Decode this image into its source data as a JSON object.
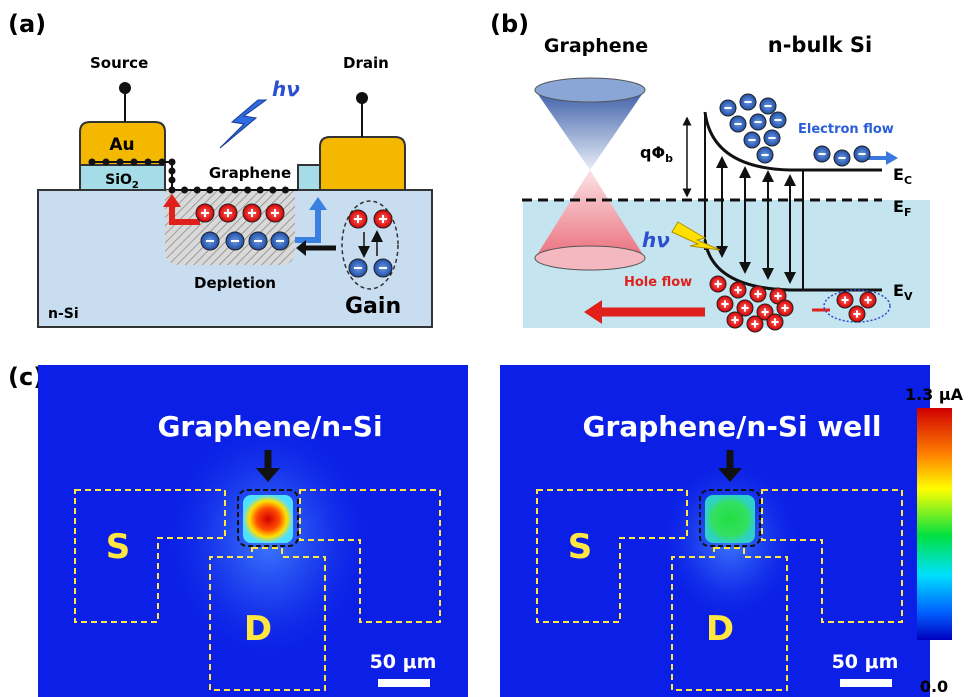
{
  "panel_a": {
    "label": "(a)",
    "source": "Source",
    "drain": "Drain",
    "photon": "hν",
    "au": "Au",
    "sio2": {
      "text": "SiO",
      "sub": "2"
    },
    "graphene": "Graphene",
    "depletion": "Depletion",
    "substrate": "n-Si",
    "gain": "Gain"
  },
  "panel_b": {
    "label": "(b)",
    "graphene": "Graphene",
    "silicon": "n-bulk Si",
    "barrier": {
      "text": "qΦ",
      "sub": "b"
    },
    "electron_flow": "Electron flow",
    "ec": {
      "text": "E",
      "sub": "C"
    },
    "ef": {
      "text": "E",
      "sub": "F"
    },
    "ev": {
      "text": "E",
      "sub": "V"
    },
    "photon": "hν",
    "hole_flow": "Hole flow"
  },
  "panel_c": {
    "label": "(c)",
    "maps": [
      {
        "title": "Graphene/n-Si",
        "source": "S",
        "drain": "D",
        "scale_bar": "50 μm"
      },
      {
        "title": "Graphene/n-Si well",
        "source": "S",
        "drain": "D",
        "scale_bar": "50 μm"
      }
    ],
    "colorbar": {
      "max": "1.3 μA",
      "min": "0.0"
    }
  }
}
